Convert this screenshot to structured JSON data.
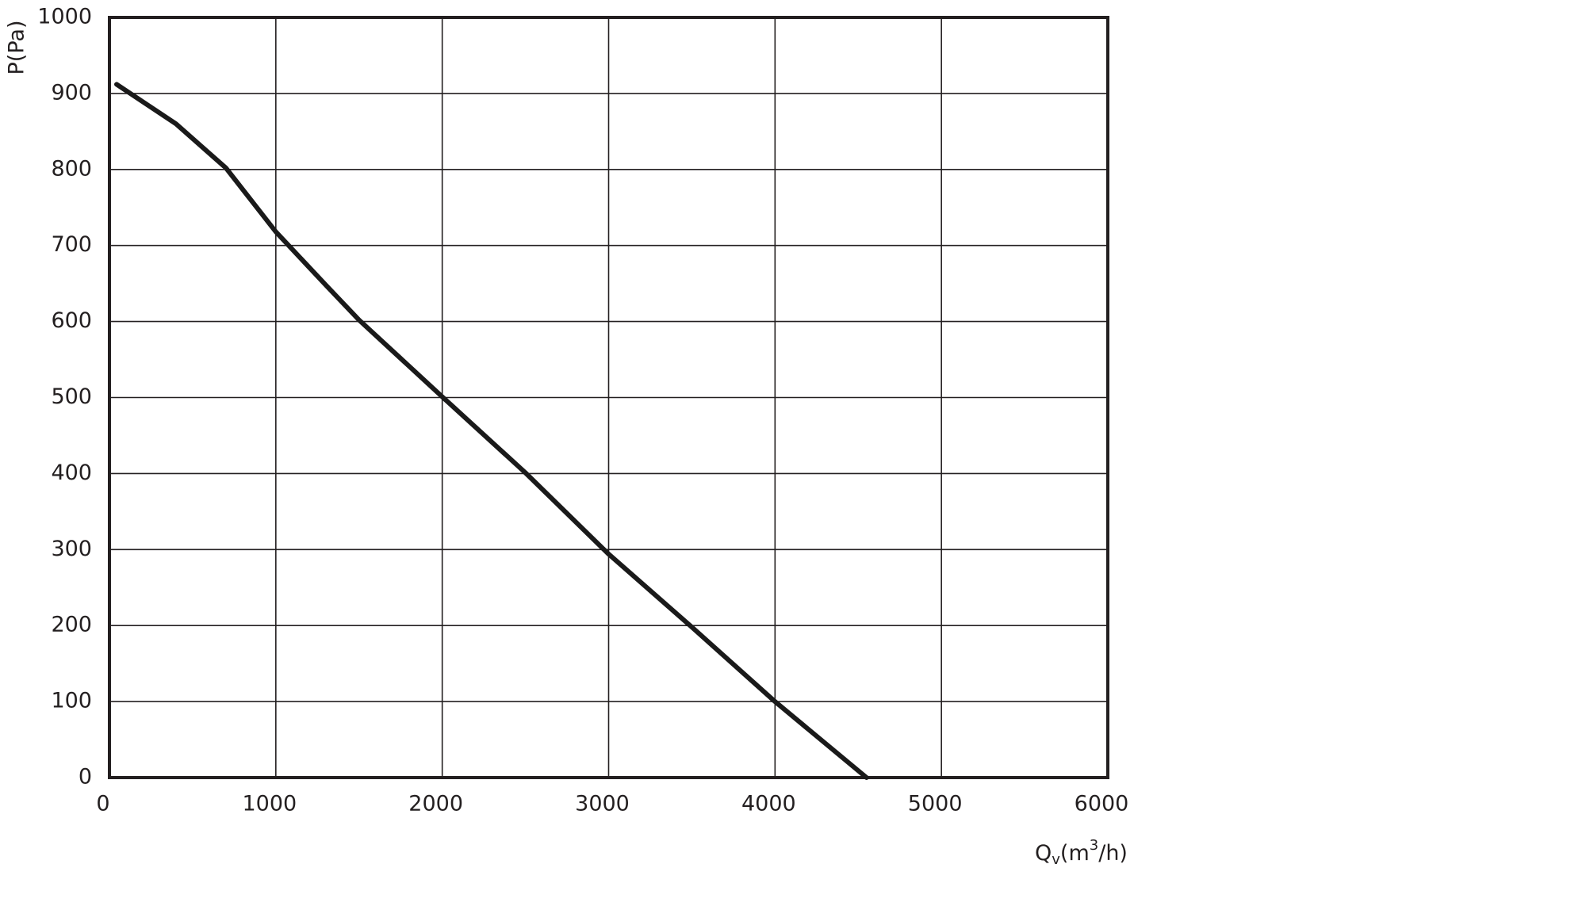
{
  "chart_data": {
    "type": "line",
    "ylabel": "P(Pa)",
    "xlabel_parts": [
      "Q",
      "v",
      "(m",
      "3",
      "/h)"
    ],
    "x": [
      43,
      400,
      700,
      1000,
      1300,
      1500,
      2000,
      2500,
      3000,
      3500,
      4000,
      4550
    ],
    "series": [
      {
        "color": "#1a1a1a",
        "values": [
          912,
          860,
          802,
          718,
          648,
          602,
          501,
          401,
          294,
          198,
          100,
          0
        ]
      }
    ],
    "xlim": [
      0,
      6000
    ],
    "xticks": [
      0,
      1000,
      2000,
      3000,
      4000,
      5000,
      6000
    ],
    "ylim": [
      0,
      1000
    ],
    "yticks": [
      0,
      100,
      200,
      300,
      400,
      500,
      600,
      700,
      800,
      900,
      1000
    ],
    "grid": true
  }
}
